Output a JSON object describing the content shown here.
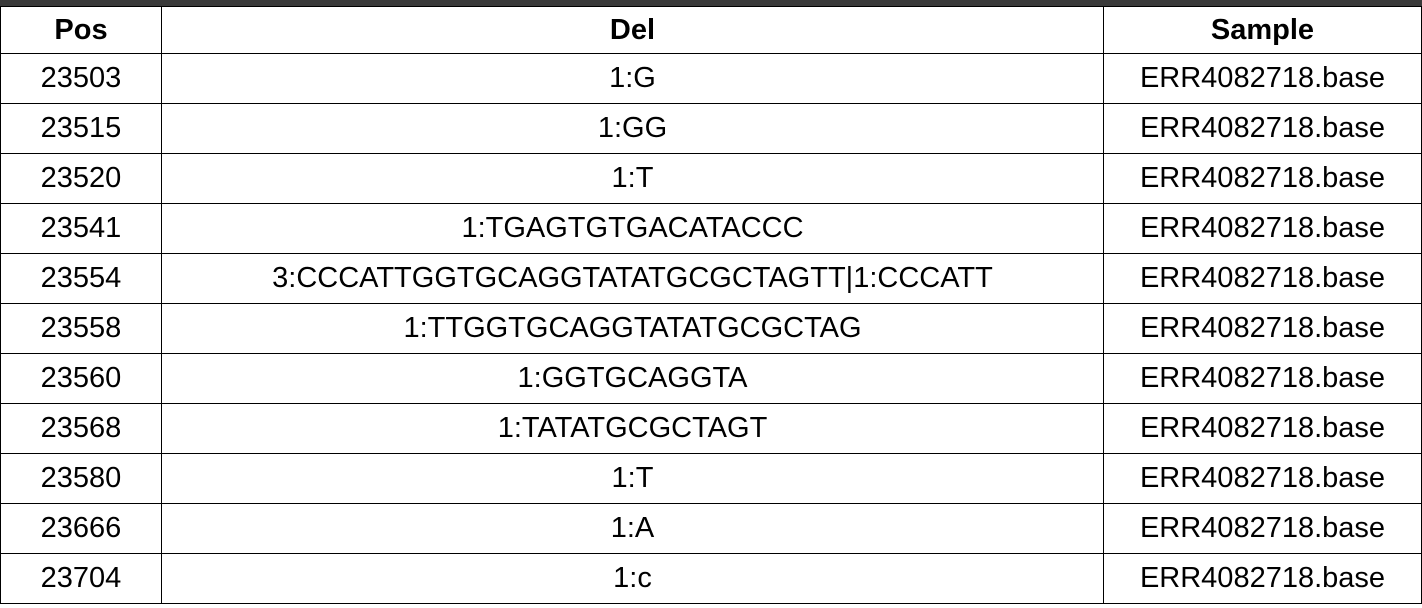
{
  "table": {
    "headers": [
      "Pos",
      "Del",
      "Sample"
    ],
    "rows": [
      [
        "23503",
        "1:G",
        "ERR4082718.base"
      ],
      [
        "23515",
        "1:GG",
        "ERR4082718.base"
      ],
      [
        "23520",
        "1:T",
        "ERR4082718.base"
      ],
      [
        "23541",
        "1:TGAGTGTGACATACCC",
        "ERR4082718.base"
      ],
      [
        "23554",
        "3:CCCATTGGTGCAGGTATATGCGCTAGTT|1:CCCATT",
        "ERR4082718.base"
      ],
      [
        "23558",
        "1:TTGGTGCAGGTATATGCGCTAG",
        "ERR4082718.base"
      ],
      [
        "23560",
        "1:GGTGCAGGTA",
        "ERR4082718.base"
      ],
      [
        "23568",
        "1:TATATGCGCTAGT",
        "ERR4082718.base"
      ],
      [
        "23580",
        "1:T",
        "ERR4082718.base"
      ],
      [
        "23666",
        "1:A",
        "ERR4082718.base"
      ],
      [
        "23704",
        "1:c",
        "ERR4082718.base"
      ]
    ]
  }
}
